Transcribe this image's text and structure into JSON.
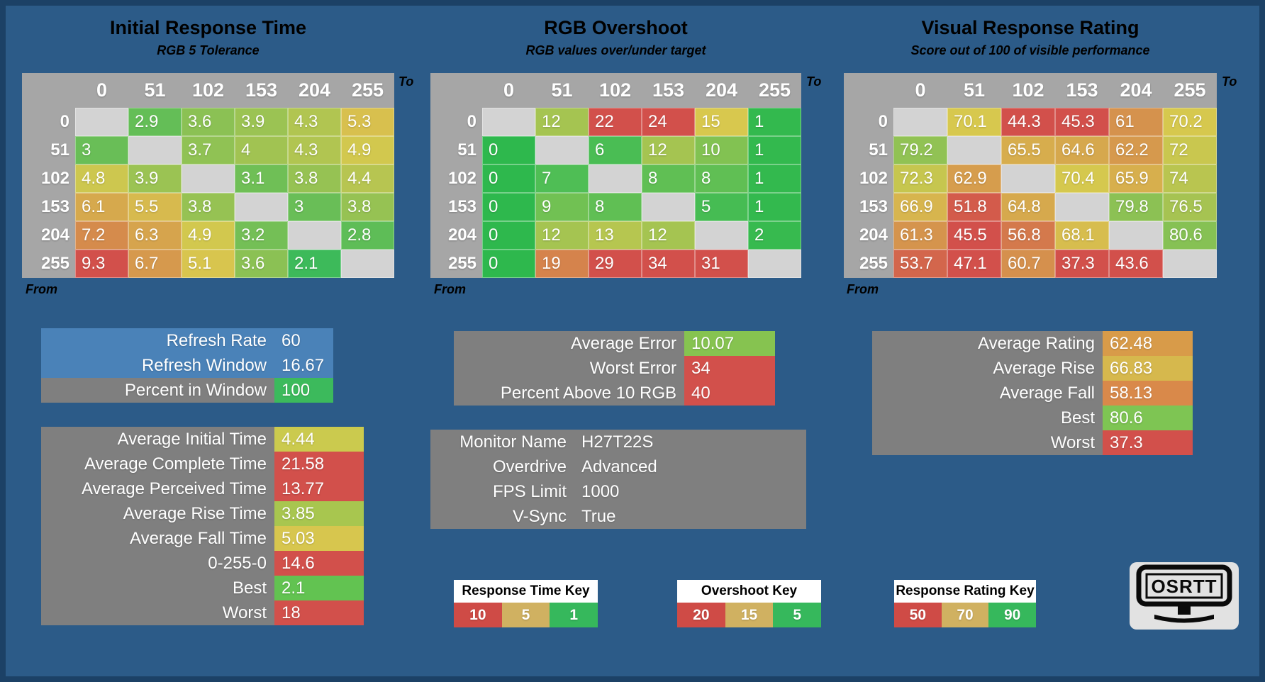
{
  "colors": {
    "background": "#2c5b88",
    "frame": "#1c4166",
    "table_header_gray": "#a6a6a6",
    "diagonal_blank_gray": "#d3d3d3",
    "stat_box_gray": "#7f7f7f",
    "stat_box_blue": "#4a82b8",
    "scale_green": "#3dba5a",
    "scale_yellow": "#d8c84e",
    "scale_red": "#d2504b"
  },
  "chart_data": [
    {
      "type": "heatmap",
      "title": "Initial Response Time",
      "subtitle": "RGB 5 Tolerance",
      "axis_to": "To",
      "axis_from": "From",
      "columns": [
        "0",
        "51",
        "102",
        "153",
        "204",
        "255"
      ],
      "rows": [
        "0",
        "51",
        "102",
        "153",
        "204",
        "255"
      ],
      "values": [
        [
          null,
          2.9,
          3.6,
          3.9,
          4.3,
          5.3
        ],
        [
          3,
          null,
          3.7,
          4,
          4.3,
          4.9
        ],
        [
          4.8,
          3.9,
          null,
          3.1,
          3.8,
          4.4
        ],
        [
          6.1,
          5.5,
          3.8,
          null,
          3,
          3.8
        ],
        [
          7.2,
          6.3,
          4.9,
          3.2,
          null,
          2.8
        ],
        [
          9.3,
          6.7,
          5.1,
          3.6,
          2.1,
          null
        ]
      ],
      "scale": [
        {
          "v": 2.2,
          "c": "#3dba5a"
        },
        {
          "v": 5,
          "c": "#d8c84e"
        },
        {
          "v": 9.3,
          "c": "#d2504b"
        }
      ]
    },
    {
      "type": "heatmap",
      "title": "RGB Overshoot",
      "subtitle": "RGB values over/under target",
      "axis_to": "To",
      "axis_from": "From",
      "columns": [
        "0",
        "51",
        "102",
        "153",
        "204",
        "255"
      ],
      "rows": [
        "0",
        "51",
        "102",
        "153",
        "204",
        "255"
      ],
      "values": [
        [
          null,
          12,
          22,
          24,
          15,
          1
        ],
        [
          0,
          null,
          6,
          12,
          10,
          1
        ],
        [
          0,
          7,
          null,
          8,
          8,
          1
        ],
        [
          0,
          9,
          8,
          null,
          5,
          1
        ],
        [
          0,
          12,
          13,
          12,
          null,
          2
        ],
        [
          0,
          19,
          29,
          34,
          31,
          null
        ]
      ],
      "scale": [
        {
          "v": 0,
          "c": "#2eb84d"
        },
        {
          "v": 7,
          "c": "#4fbe55"
        },
        {
          "v": 15,
          "c": "#d8c84e"
        },
        {
          "v": 22,
          "c": "#d2504b"
        }
      ]
    },
    {
      "type": "heatmap",
      "title": "Visual Response Rating",
      "subtitle": "Score out of 100 of visible performance",
      "axis_to": "To",
      "axis_from": "From",
      "columns": [
        "0",
        "51",
        "102",
        "153",
        "204",
        "255"
      ],
      "rows": [
        "0",
        "51",
        "102",
        "153",
        "204",
        "255"
      ],
      "values": [
        [
          null,
          70.1,
          44.3,
          45.3,
          61,
          70.2
        ],
        [
          79.2,
          null,
          65.5,
          64.6,
          62.2,
          72
        ],
        [
          72.3,
          62.9,
          null,
          70.4,
          65.9,
          74
        ],
        [
          66.9,
          51.8,
          64.8,
          null,
          79.8,
          76.5
        ],
        [
          61.3,
          45.5,
          56.8,
          68.1,
          null,
          80.6
        ],
        [
          53.7,
          47.1,
          60.7,
          37.3,
          43.6,
          null
        ]
      ],
      "scale": [
        {
          "v": 50,
          "c": "#d2504b"
        },
        {
          "v": 70,
          "c": "#d8c84e"
        },
        {
          "v": 90,
          "c": "#3dba5a"
        }
      ]
    }
  ],
  "stat_boxes": {
    "refresh": {
      "rows": [
        {
          "label": "Refresh Rate",
          "value": "60",
          "row_bg": "#4a82b8"
        },
        {
          "label": "Refresh Window",
          "value": "16.67",
          "row_bg": "#4a82b8"
        },
        {
          "label": "Percent in Window",
          "value": "100",
          "row_bg": "#7f7f7f",
          "value_bg": "#3cba5c"
        }
      ]
    },
    "times": {
      "rows": [
        {
          "label": "Average Initial Time",
          "value": "4.44",
          "row_bg": "#7f7f7f",
          "value_bg": "#cbca4e"
        },
        {
          "label": "Average Complete Time",
          "value": "21.58",
          "row_bg": "#7f7f7f",
          "value_bg": "#d2504b"
        },
        {
          "label": "Average Perceived Time",
          "value": "13.77",
          "row_bg": "#7f7f7f",
          "value_bg": "#d2504b"
        },
        {
          "label": "Average Rise Time",
          "value": "3.85",
          "row_bg": "#7f7f7f",
          "value_bg": "#a8c64f"
        },
        {
          "label": "Average Fall Time",
          "value": "5.03",
          "row_bg": "#7f7f7f",
          "value_bg": "#d7c64e"
        },
        {
          "label": "0-255-0",
          "value": "14.6",
          "row_bg": "#7f7f7f",
          "value_bg": "#d2504b"
        },
        {
          "label": "Best",
          "value": "2.1",
          "row_bg": "#7f7f7f",
          "value_bg": "#62c351"
        },
        {
          "label": "Worst",
          "value": "18",
          "row_bg": "#7f7f7f",
          "value_bg": "#d2504b"
        }
      ]
    },
    "errors": {
      "rows": [
        {
          "label": "Average Error",
          "value": "10.07",
          "row_bg": "#7f7f7f",
          "value_bg": "#86c350"
        },
        {
          "label": "Worst Error",
          "value": "34",
          "row_bg": "#7f7f7f",
          "value_bg": "#d2504b"
        },
        {
          "label": "Percent Above 10 RGB",
          "value": "40",
          "row_bg": "#7f7f7f",
          "value_bg": "#d2504b"
        }
      ]
    },
    "monitor": {
      "rows": [
        {
          "label": "Monitor Name",
          "value": "H27T22S",
          "row_bg": "#7f7f7f"
        },
        {
          "label": "Overdrive",
          "value": "Advanced",
          "row_bg": "#7f7f7f"
        },
        {
          "label": "FPS Limit",
          "value": "1000",
          "row_bg": "#7f7f7f"
        },
        {
          "label": "V-Sync",
          "value": "True",
          "row_bg": "#7f7f7f"
        }
      ]
    },
    "rating": {
      "rows": [
        {
          "label": "Average Rating",
          "value": "62.48",
          "row_bg": "#7f7f7f",
          "value_bg": "#d89b49"
        },
        {
          "label": "Average Rise",
          "value": "66.83",
          "row_bg": "#7f7f7f",
          "value_bg": "#d6b84d"
        },
        {
          "label": "Average Fall",
          "value": "58.13",
          "row_bg": "#7f7f7f",
          "value_bg": "#d9894a"
        },
        {
          "label": "Best",
          "value": "80.6",
          "row_bg": "#7f7f7f",
          "value_bg": "#7ec553"
        },
        {
          "label": "Worst",
          "value": "37.3",
          "row_bg": "#7f7f7f",
          "value_bg": "#d2504b"
        }
      ]
    }
  },
  "keys": [
    {
      "title": "Response Time Key",
      "cells": [
        {
          "label": "10",
          "color": "#cf4b46"
        },
        {
          "label": "5",
          "color": "#d0b161"
        },
        {
          "label": "1",
          "color": "#36b85c"
        }
      ]
    },
    {
      "title": "Overshoot Key",
      "cells": [
        {
          "label": "20",
          "color": "#cf4b46"
        },
        {
          "label": "15",
          "color": "#d0b161"
        },
        {
          "label": "5",
          "color": "#36b85c"
        }
      ]
    },
    {
      "title": "Response Rating Key",
      "cells": [
        {
          "label": "50",
          "color": "#cf4b46"
        },
        {
          "label": "70",
          "color": "#d0b161"
        },
        {
          "label": "90",
          "color": "#36b85c"
        }
      ]
    }
  ],
  "logo": {
    "text": "OSRTT"
  }
}
